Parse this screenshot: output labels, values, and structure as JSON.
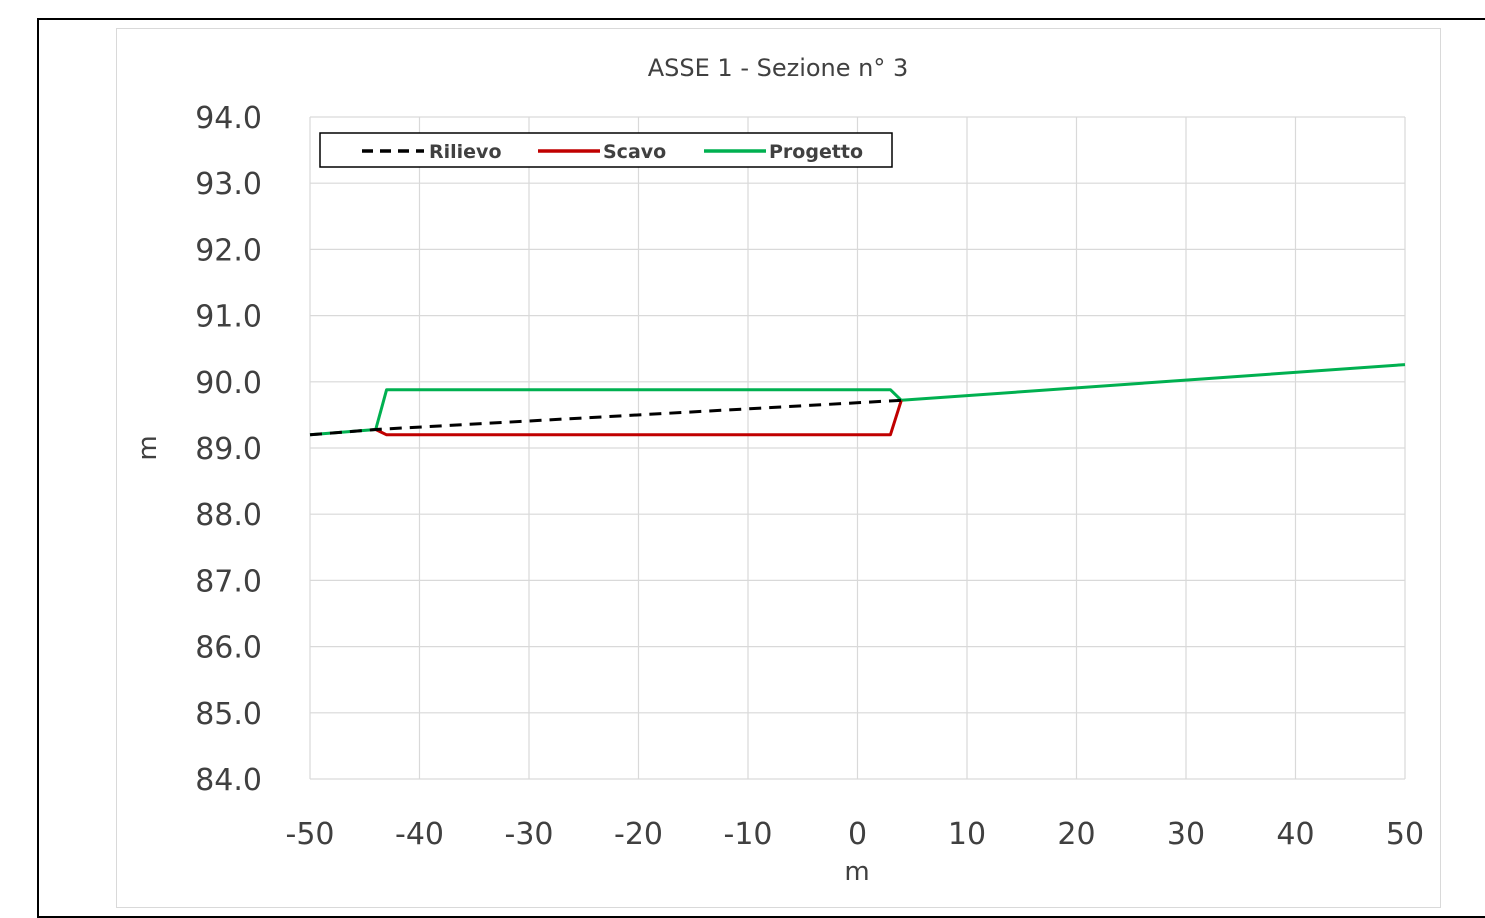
{
  "chart_data": {
    "type": "line",
    "title": "ASSE 1 - Sezione n° 3",
    "xlabel": "m",
    "ylabel": "m",
    "xlim": [
      -50,
      50
    ],
    "ylim": [
      84.0,
      94.0
    ],
    "x_ticks": [
      "-50",
      "-40",
      "-30",
      "-20",
      "-10",
      "0",
      "10",
      "20",
      "30",
      "40",
      "50"
    ],
    "y_ticks": [
      "94.0",
      "93.0",
      "92.0",
      "91.0",
      "90.0",
      "89.0",
      "88.0",
      "87.0",
      "86.0",
      "85.0",
      "84.0"
    ],
    "grid": true,
    "legend_position": "top-left",
    "series": [
      {
        "name": "Rilievo",
        "color": "#000000",
        "style": "dashed",
        "points": [
          [
            -50,
            89.2
          ],
          [
            -44,
            89.28
          ],
          [
            4,
            89.72
          ]
        ]
      },
      {
        "name": "Scavo",
        "color": "#c00000",
        "style": "solid",
        "points": [
          [
            -44,
            89.28
          ],
          [
            -43,
            89.2
          ],
          [
            3,
            89.2
          ],
          [
            4,
            89.72
          ]
        ]
      },
      {
        "name": "Progetto",
        "color": "#00b050",
        "style": "solid",
        "points": [
          [
            -50,
            89.2
          ],
          [
            -44,
            89.28
          ],
          [
            -43,
            89.88
          ],
          [
            3,
            89.88
          ],
          [
            4,
            89.72
          ],
          [
            50,
            90.26
          ]
        ]
      }
    ]
  }
}
